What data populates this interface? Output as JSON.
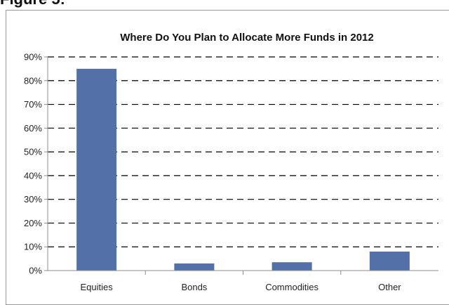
{
  "figure_label": "Figure 5:",
  "chart_data": {
    "type": "bar",
    "title": "Where Do You Plan to Allocate More Funds in 2012",
    "categories": [
      "Equities",
      "Bonds",
      "Commodities",
      "Other"
    ],
    "values": [
      85,
      3,
      3.5,
      8
    ],
    "ylim": [
      0,
      90
    ],
    "yticks": [
      0,
      10,
      20,
      30,
      40,
      50,
      60,
      70,
      80,
      90
    ],
    "ytick_labels": [
      "0%",
      "10%",
      "20%",
      "30%",
      "40%",
      "50%",
      "60%",
      "70%",
      "80%",
      "90%"
    ],
    "xlabel": "",
    "ylabel": "",
    "grid": true,
    "colors": {
      "bar": "#5470A8",
      "grid": "#000000",
      "axis": "#8c8c8c"
    }
  }
}
